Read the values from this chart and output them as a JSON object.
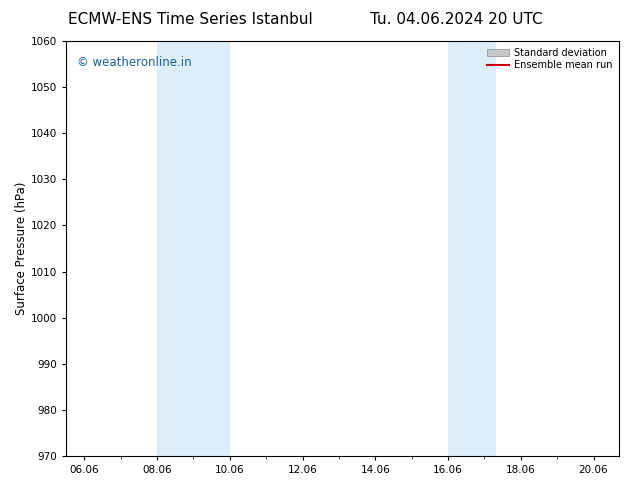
{
  "title_left": "ECMW-ENS Time Series Istanbul",
  "title_right": "Tu. 04.06.2024 20 UTC",
  "ylabel": "Surface Pressure (hPa)",
  "ylim": [
    970,
    1060
  ],
  "yticks": [
    970,
    980,
    990,
    1000,
    1010,
    1020,
    1030,
    1040,
    1050,
    1060
  ],
  "xlim_start": 5.5,
  "xlim_end": 20.7,
  "xtick_labels": [
    "06.06",
    "08.06",
    "10.06",
    "12.06",
    "14.06",
    "16.06",
    "18.06",
    "20.06"
  ],
  "xtick_positions": [
    6.0,
    8.0,
    10.0,
    12.0,
    14.0,
    16.0,
    18.0,
    20.0
  ],
  "shaded_bands": [
    {
      "x_start": 8.0,
      "x_end": 10.0,
      "color": "#ddeef8"
    },
    {
      "x_start": 16.0,
      "x_end": 17.33,
      "color": "#ddeef8"
    }
  ],
  "watermark_text": "© weatheronline.in",
  "watermark_color": "#1a5fa8",
  "watermark_fontsize": 8.5,
  "background_color": "#ffffff",
  "legend_items": [
    {
      "label": "Standard deviation",
      "color": "#c8c8c8",
      "type": "patch"
    },
    {
      "label": "Ensemble mean run",
      "color": "#cc0000",
      "type": "line"
    }
  ],
  "title_fontsize": 11,
  "tick_fontsize": 7.5,
  "ylabel_fontsize": 8.5
}
